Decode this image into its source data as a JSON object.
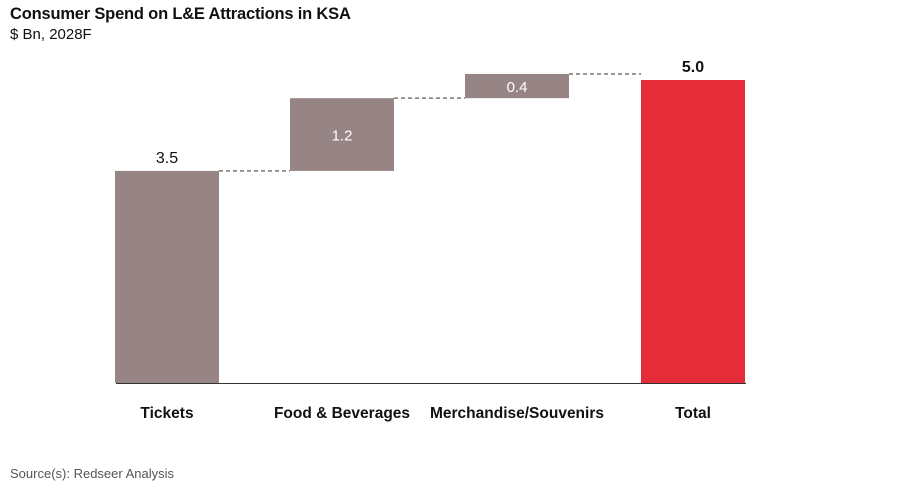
{
  "title": "Consumer Spend on L&E Attractions in KSA",
  "subtitle": "$ Bn, 2028F",
  "source": "Source(s): Redseer Analysis",
  "colors": {
    "bar": "#968584",
    "total": "#e52d3a",
    "axis": "#333333",
    "connector": "#777777"
  },
  "chart_data": {
    "type": "bar",
    "subtype": "waterfall",
    "categories": [
      "Tickets",
      "Food & Beverages",
      "Merchandise/Souvenirs",
      "Total"
    ],
    "values": [
      3.5,
      1.2,
      0.4,
      5.0
    ],
    "labels": [
      "3.5",
      "1.2",
      "0.4",
      "5.0"
    ],
    "kinds": [
      "start",
      "increment",
      "increment",
      "total"
    ],
    "ylim": [
      0,
      5.5
    ],
    "grid": false,
    "legend": "none"
  }
}
